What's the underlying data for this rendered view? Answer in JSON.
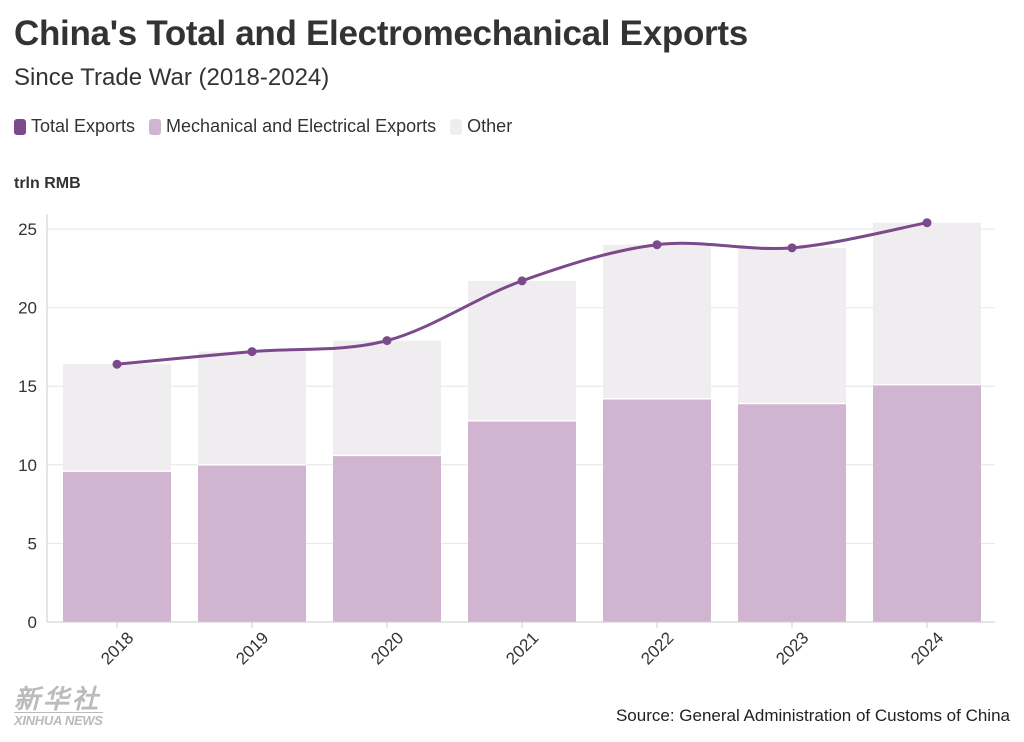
{
  "title": "China's Total and Electromechanical Exports",
  "subtitle": "Since Trade War (2018-2024)",
  "source": "Source: General Administration of Customs of China",
  "logo": {
    "cn": "新华社",
    "en": "XINHUA NEWS"
  },
  "legend": [
    {
      "label": "Total Exports",
      "color": "#7b4a8c"
    },
    {
      "label": "Mechanical and Electrical Exports",
      "color": "#d1b4d0"
    },
    {
      "label": "Other",
      "color": "#efedef"
    }
  ],
  "chart_data": {
    "type": "bar",
    "stacked": true,
    "ylabel": "trln RMB",
    "ylim": [
      0,
      26
    ],
    "yticks": [
      0,
      5,
      10,
      15,
      20,
      25
    ],
    "grid": "y",
    "categories": [
      "2018",
      "2019",
      "2020",
      "2021",
      "2022",
      "2023",
      "2024"
    ],
    "series": [
      {
        "name": "Mechanical and Electrical Exports",
        "type": "bar",
        "color": "#d1b4d0",
        "values": [
          9.6,
          10.0,
          10.6,
          12.8,
          14.2,
          13.9,
          15.1
        ]
      },
      {
        "name": "Other",
        "type": "bar",
        "color": "#efedef",
        "values": [
          6.8,
          7.2,
          7.3,
          8.9,
          9.8,
          9.9,
          10.3
        ]
      },
      {
        "name": "Total Exports",
        "type": "line",
        "color": "#7b4a8c",
        "values": [
          16.4,
          17.2,
          17.9,
          21.7,
          24.0,
          23.8,
          25.4
        ]
      }
    ]
  }
}
